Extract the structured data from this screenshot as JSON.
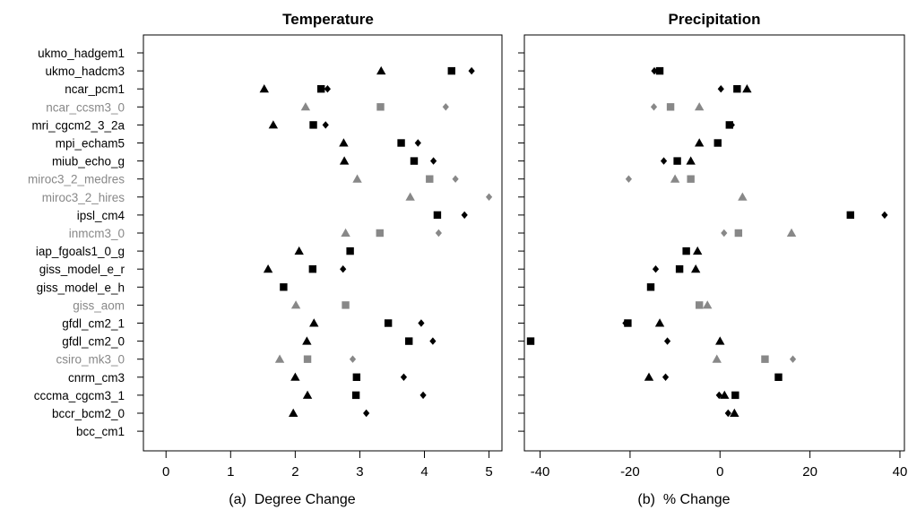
{
  "figure": {
    "models": [
      {
        "name": "ukmo_hadgem1",
        "style": "black"
      },
      {
        "name": "ukmo_hadcm3",
        "style": "black"
      },
      {
        "name": "ncar_pcm1",
        "style": "black"
      },
      {
        "name": "ncar_ccsm3_0",
        "style": "gray"
      },
      {
        "name": "mri_cgcm2_3_2a",
        "style": "black"
      },
      {
        "name": "mpi_echam5",
        "style": "black"
      },
      {
        "name": "miub_echo_g",
        "style": "black"
      },
      {
        "name": "miroc3_2_medres",
        "style": "gray"
      },
      {
        "name": "miroc3_2_hires",
        "style": "gray"
      },
      {
        "name": "ipsl_cm4",
        "style": "black"
      },
      {
        "name": "inmcm3_0",
        "style": "gray"
      },
      {
        "name": "iap_fgoals1_0_g",
        "style": "black"
      },
      {
        "name": "giss_model_e_r",
        "style": "black"
      },
      {
        "name": "giss_model_e_h",
        "style": "black"
      },
      {
        "name": "giss_aom",
        "style": "gray"
      },
      {
        "name": "gfdl_cm2_1",
        "style": "black"
      },
      {
        "name": "gfdl_cm2_0",
        "style": "black"
      },
      {
        "name": "csiro_mk3_0",
        "style": "gray"
      },
      {
        "name": "cnrm_cm3",
        "style": "black"
      },
      {
        "name": "cccma_cgcm3_1",
        "style": "black"
      },
      {
        "name": "bccr_bcm2_0",
        "style": "black"
      },
      {
        "name": "bcc_cm1",
        "style": "black"
      }
    ],
    "colors": {
      "black": "#000000",
      "gray": "#888888",
      "frame": "#000000"
    }
  },
  "chart_data": [
    {
      "type": "scatter",
      "title": "Temperature",
      "xlabel": "(a)  Degree Change",
      "xlim": [
        -0.35,
        5.2
      ],
      "xticks": [
        0,
        1,
        2,
        3,
        4,
        5
      ],
      "marker_order": [
        "triangle",
        "square",
        "diamond"
      ],
      "values": {
        "ukmo_hadgem1": [
          null,
          null,
          null
        ],
        "ukmo_hadcm3": [
          3.33,
          4.42,
          4.73
        ],
        "ncar_pcm1": [
          1.52,
          2.4,
          2.5
        ],
        "ncar_ccsm3_0": [
          2.16,
          3.32,
          4.33
        ],
        "mri_cgcm2_3_2a": [
          1.66,
          2.28,
          2.47
        ],
        "mpi_echam5": [
          2.75,
          3.64,
          3.9
        ],
        "miub_echo_g": [
          2.76,
          3.84,
          4.14
        ],
        "miroc3_2_medres": [
          2.96,
          4.08,
          4.48
        ],
        "miroc3_2_hires": [
          3.78,
          null,
          5.0
        ],
        "ipsl_cm4": [
          null,
          4.2,
          4.62
        ],
        "inmcm3_0": [
          2.78,
          3.31,
          4.22
        ],
        "iap_fgoals1_0_g": [
          2.06,
          2.85,
          null
        ],
        "giss_model_e_r": [
          1.58,
          2.27,
          2.74
        ],
        "giss_model_e_h": [
          null,
          1.82,
          null
        ],
        "giss_aom": [
          2.01,
          2.78,
          null
        ],
        "gfdl_cm2_1": [
          2.29,
          3.44,
          3.95
        ],
        "gfdl_cm2_0": [
          2.18,
          3.76,
          4.13
        ],
        "csiro_mk3_0": [
          1.76,
          2.19,
          2.89
        ],
        "cnrm_cm3": [
          2.0,
          2.95,
          3.68
        ],
        "cccma_cgcm3_1": [
          2.19,
          2.94,
          3.98
        ],
        "bccr_bcm2_0": [
          1.97,
          null,
          3.1
        ],
        "bcc_cm1": [
          null,
          null,
          null
        ]
      }
    },
    {
      "type": "scatter",
      "title": "Precipitation",
      "xlabel": "(b)  % Change",
      "xlim": [
        -43.5,
        41
      ],
      "xticks": [
        -40,
        -20,
        0,
        20,
        40
      ],
      "marker_order": [
        "triangle",
        "square",
        "diamond"
      ],
      "values": {
        "ukmo_hadgem1": [
          null,
          null,
          null
        ],
        "ukmo_hadcm3": [
          null,
          -13.4,
          -14.6
        ],
        "ncar_pcm1": [
          6.0,
          3.8,
          0.2
        ],
        "ncar_ccsm3_0": [
          -4.6,
          -11.0,
          -14.7
        ],
        "mri_cgcm2_3_2a": [
          null,
          2.1,
          2.6
        ],
        "mpi_echam5": [
          -4.6,
          -0.5,
          null
        ],
        "miub_echo_g": [
          -6.5,
          -9.5,
          -12.5
        ],
        "miroc3_2_medres": [
          -10.0,
          -6.5,
          -20.3
        ],
        "miroc3_2_hires": [
          5.0,
          null,
          null
        ],
        "ipsl_cm4": [
          null,
          29.0,
          36.6
        ],
        "inmcm3_0": [
          15.9,
          4.1,
          0.9
        ],
        "iap_fgoals1_0_g": [
          -5.0,
          -7.5,
          null
        ],
        "giss_model_e_r": [
          -5.4,
          -9.0,
          -14.3
        ],
        "giss_model_e_h": [
          null,
          -15.4,
          null
        ],
        "giss_aom": [
          -2.8,
          -4.6,
          null
        ],
        "gfdl_cm2_1": [
          -13.4,
          -20.5,
          -21.0
        ],
        "gfdl_cm2_0": [
          0.0,
          -42.1,
          -11.7
        ],
        "csiro_mk3_0": [
          -0.7,
          10.0,
          16.2
        ],
        "cnrm_cm3": [
          -15.8,
          13.0,
          -12.1
        ],
        "cccma_cgcm3_1": [
          1.0,
          3.4,
          -0.2
        ],
        "bccr_bcm2_0": [
          3.2,
          null,
          1.8
        ],
        "bcc_cm1": [
          null,
          null,
          null
        ]
      }
    }
  ]
}
